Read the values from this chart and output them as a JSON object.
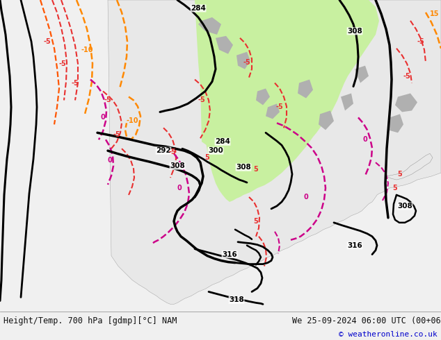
{
  "title_left": "Height/Temp. 700 hPa [gdmp][°C] NAM",
  "title_right": "We 25-09-2024 06:00 UTC (00+06)",
  "copyright": "© weatheronline.co.uk",
  "bg_color": "#d8d8d8",
  "land_color": "#e8e8e8",
  "green_color": "#c8f0a0",
  "gray_color": "#b8b8b8",
  "footer_bg": "#f0f0f0",
  "footer_text_color": "#111111",
  "copyright_color": "#0000cc",
  "figsize": [
    6.34,
    4.9
  ],
  "dpi": 100
}
